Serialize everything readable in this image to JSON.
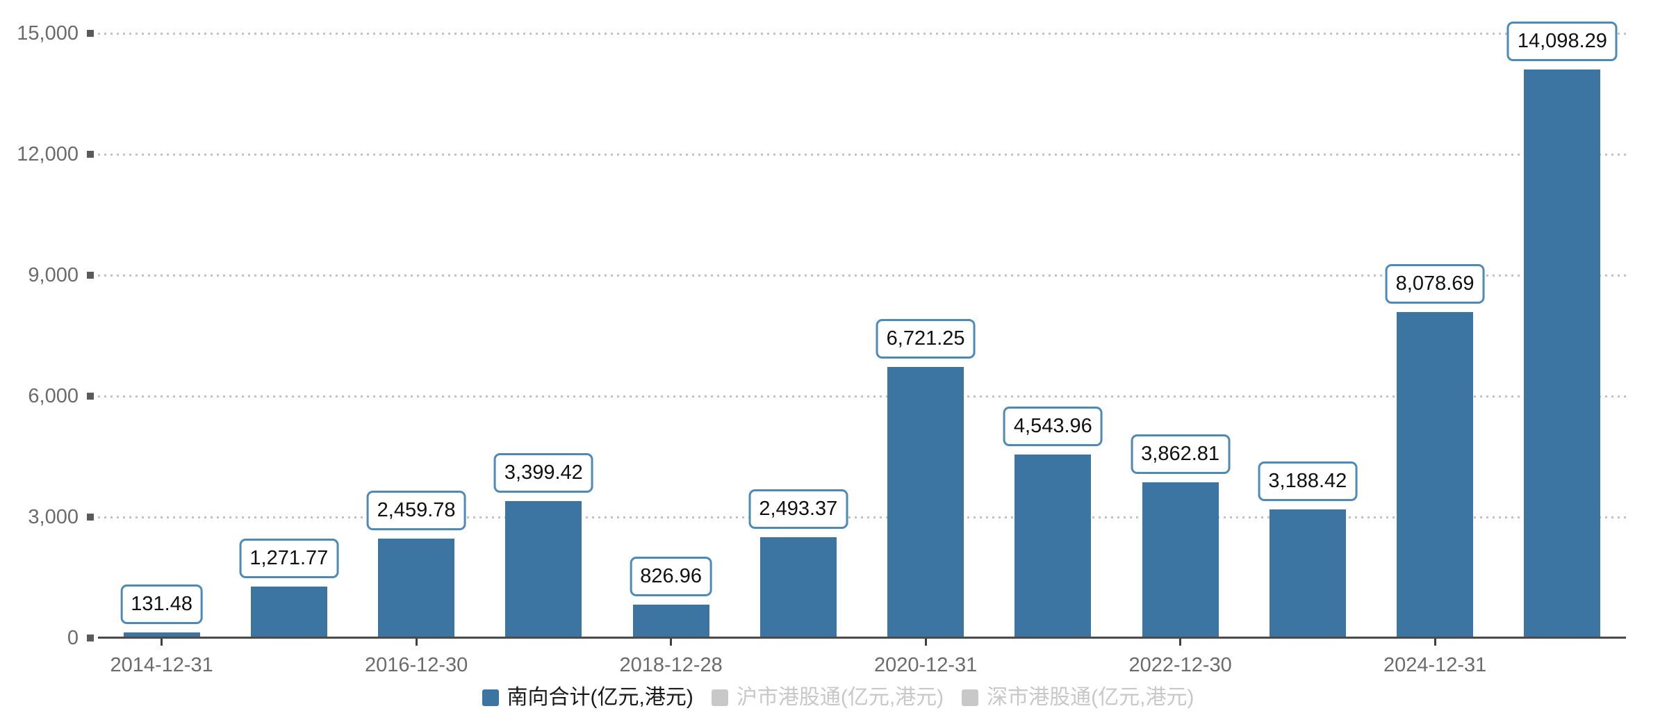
{
  "chart_data": {
    "type": "bar",
    "title": "",
    "xlabel": "",
    "ylabel": "",
    "ylim": [
      0,
      15000
    ],
    "grid": "horizontal-dotted",
    "legend_position": "bottom-center",
    "y_ticks": [
      {
        "value": 0,
        "label": "0"
      },
      {
        "value": 3000,
        "label": "3,000"
      },
      {
        "value": 6000,
        "label": "6,000"
      },
      {
        "value": 9000,
        "label": "9,000"
      },
      {
        "value": 12000,
        "label": "12,000"
      },
      {
        "value": 15000,
        "label": "15,000"
      }
    ],
    "bars": [
      {
        "value": 131.48,
        "value_label": "131.48",
        "date": "2014-12-31"
      },
      {
        "value": 1271.77,
        "value_label": "1,271.77",
        "date": ""
      },
      {
        "value": 2459.78,
        "value_label": "2,459.78",
        "date": "2016-12-30"
      },
      {
        "value": 3399.42,
        "value_label": "3,399.42",
        "date": ""
      },
      {
        "value": 826.96,
        "value_label": "826.96",
        "date": "2018-12-28"
      },
      {
        "value": 2493.37,
        "value_label": "2,493.37",
        "date": ""
      },
      {
        "value": 6721.25,
        "value_label": "6,721.25",
        "date": "2020-12-31"
      },
      {
        "value": 4543.96,
        "value_label": "4,543.96",
        "date": ""
      },
      {
        "value": 3862.81,
        "value_label": "3,862.81",
        "date": "2022-12-30"
      },
      {
        "value": 3188.42,
        "value_label": "3,188.42",
        "date": ""
      },
      {
        "value": 8078.69,
        "value_label": "8,078.69",
        "date": "2024-12-31"
      },
      {
        "value": 14098.29,
        "value_label": "14,098.29",
        "date": ""
      }
    ],
    "series": [
      {
        "name": "南向合计(亿元,港元)",
        "color": "#3c75a1",
        "active": true
      },
      {
        "name": "沪市港股通(亿元,港元)",
        "color": "#c8c8c8",
        "active": false
      },
      {
        "name": "深市港股通(亿元,港元)",
        "color": "#c8c8c8",
        "active": false
      }
    ],
    "colors": {
      "bar": "#3c75a1",
      "value_label_border": "#4d8ab8",
      "value_label_text": "#111111",
      "grid_line": "#c3c3c3",
      "axis_line": "#4a4a4a",
      "axis_text": "#6b6b6b",
      "tick_marker": "#5a5a5a",
      "x_tick": "#3f3f3f",
      "legend_active_text": "#1a1a1a",
      "legend_inactive": "#c8c8c8",
      "background": "#ffffff"
    }
  }
}
